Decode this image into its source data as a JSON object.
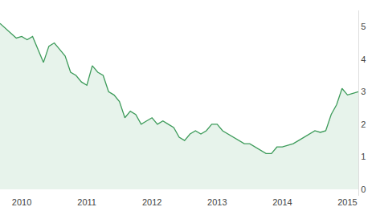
{
  "chart_data": {
    "type": "area",
    "categories": [
      null,
      null,
      null,
      null,
      "2010",
      null,
      null,
      null,
      null,
      null,
      null,
      null,
      null,
      null,
      null,
      null,
      "2011",
      null,
      null,
      null,
      null,
      null,
      null,
      null,
      null,
      null,
      null,
      null,
      "2012",
      null,
      null,
      null,
      null,
      null,
      null,
      null,
      null,
      null,
      null,
      null,
      "2013",
      null,
      null,
      null,
      null,
      null,
      null,
      null,
      null,
      null,
      null,
      null,
      "2014",
      null,
      null,
      null,
      null,
      null,
      null,
      null,
      null,
      null,
      null,
      null,
      "2015",
      null,
      null
    ],
    "values": [
      5.1,
      4.95,
      4.8,
      4.65,
      4.7,
      4.6,
      4.7,
      4.3,
      3.9,
      4.4,
      4.5,
      4.3,
      4.1,
      3.6,
      3.5,
      3.3,
      3.2,
      3.8,
      3.6,
      3.5,
      3.0,
      2.9,
      2.7,
      2.2,
      2.4,
      2.3,
      2.0,
      2.1,
      2.2,
      2.0,
      2.1,
      2.0,
      1.9,
      1.6,
      1.5,
      1.7,
      1.8,
      1.7,
      1.8,
      2.0,
      2.0,
      1.8,
      1.7,
      1.6,
      1.5,
      1.4,
      1.4,
      1.3,
      1.2,
      1.1,
      1.1,
      1.3,
      1.3,
      1.35,
      1.4,
      1.5,
      1.6,
      1.7,
      1.8,
      1.75,
      1.8,
      2.3,
      2.6,
      3.1,
      2.9,
      2.95,
      3.0
    ],
    "color": "#3d9b5a",
    "ylim": [
      -0.2,
      5.5
    ],
    "yticks": [
      0,
      1,
      2,
      3,
      4,
      5
    ],
    "grid": false
  }
}
